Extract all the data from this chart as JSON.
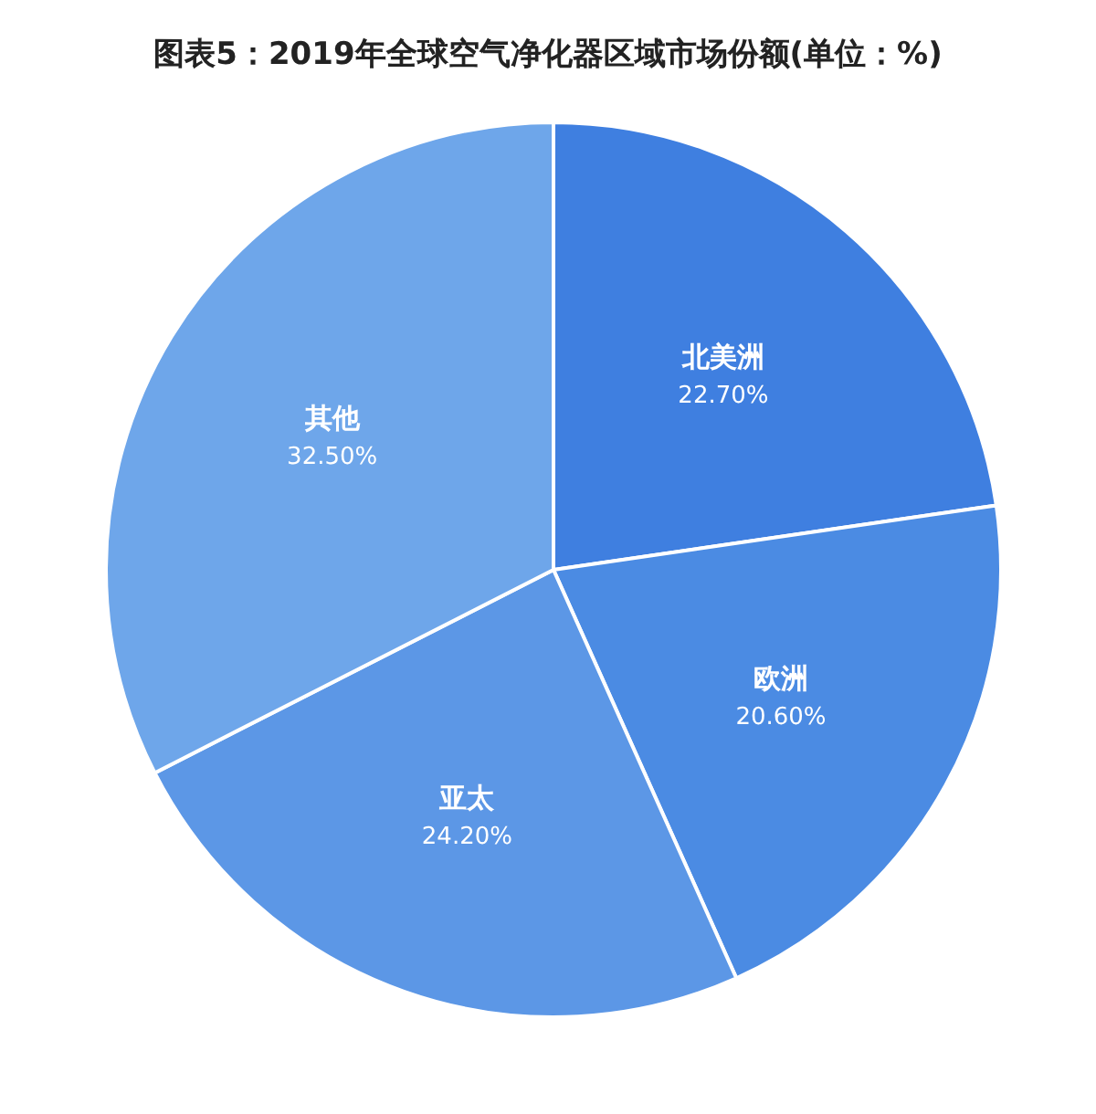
{
  "chart_data": {
    "type": "pie",
    "title": "图表5：2019年全球空气净化器区域市场份额(单位：%)",
    "categories": [
      "北美洲",
      "欧洲",
      "亚太",
      "其他"
    ],
    "values": [
      22.7,
      20.6,
      24.2,
      32.5
    ],
    "value_labels": [
      "22.70%",
      "20.60%",
      "24.20%",
      "32.50%"
    ],
    "colors": [
      "#3f7fe0",
      "#4b8be3",
      "#5c97e6",
      "#6ea6ea"
    ]
  }
}
